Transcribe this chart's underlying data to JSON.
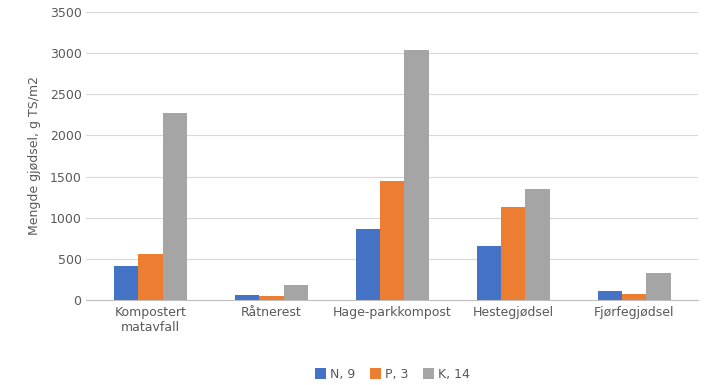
{
  "categories": [
    "Kompostert\nmatavfall",
    "Råtnerest",
    "Hage-parkkompost",
    "Hestegjødsel",
    "Fjørfegjødsel"
  ],
  "series": {
    "N, 9": [
      420,
      60,
      870,
      660,
      110
    ],
    "P, 3": [
      560,
      50,
      1450,
      1130,
      75
    ],
    "K, 14": [
      2270,
      190,
      3030,
      1350,
      330
    ]
  },
  "colors": {
    "N, 9": "#4472c4",
    "P, 3": "#ed7d31",
    "K, 14": "#a5a5a5"
  },
  "ylabel": "Mengde gjødsel, g TS/m2",
  "ylim": [
    0,
    3500
  ],
  "yticks": [
    0,
    500,
    1000,
    1500,
    2000,
    2500,
    3000,
    3500
  ],
  "legend_labels": [
    "N, 9",
    "P, 3",
    "K, 14"
  ],
  "background_color": "#ffffff",
  "bar_width": 0.2,
  "grid_color": "#d9d9d9",
  "tick_label_color": "#595959",
  "spine_color": "#bfbfbf"
}
